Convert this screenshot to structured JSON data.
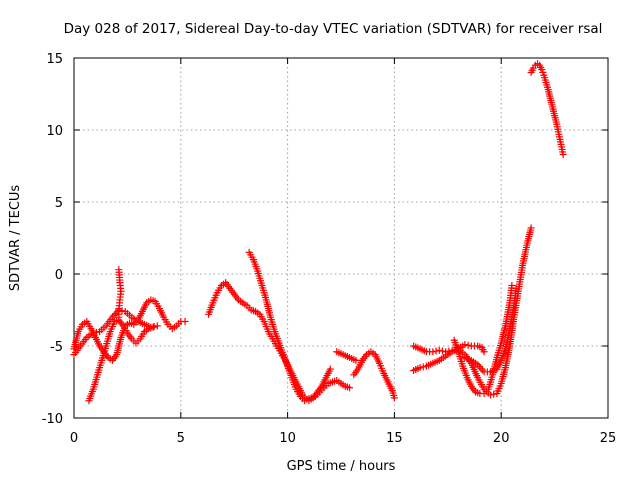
{
  "chart_data": {
    "type": "scatter",
    "title": "Day 028 of 2017, Sidereal Day-to-day VTEC variation (SDTVAR) for receiver rsal",
    "xlabel": "GPS time / hours",
    "ylabel": "SDTVAR / TECUs",
    "xlim": [
      0,
      25
    ],
    "ylim": [
      -10,
      15
    ],
    "xticks": [
      "0",
      "5",
      "10",
      "15",
      "20",
      "25"
    ],
    "yticks": [
      "-10",
      "-5",
      "0",
      "5",
      "10",
      "15"
    ],
    "grid": true,
    "marker": "+",
    "color": "#ff0000",
    "series": [
      {
        "points": [
          [
            0.0,
            -5.6
          ],
          [
            0.3,
            -5.0
          ],
          [
            0.6,
            -4.4
          ],
          [
            0.9,
            -4.1
          ],
          [
            1.2,
            -4.0
          ],
          [
            1.5,
            -3.6
          ],
          [
            1.8,
            -3.0
          ],
          [
            2.1,
            -2.5
          ],
          [
            2.4,
            -2.6
          ],
          [
            2.7,
            -3.0
          ],
          [
            3.0,
            -3.3
          ],
          [
            3.3,
            -3.5
          ],
          [
            3.6,
            -3.7
          ],
          [
            3.9,
            -3.6
          ]
        ]
      },
      {
        "points": [
          [
            0.0,
            -5.2
          ],
          [
            0.2,
            -4.0
          ],
          [
            0.4,
            -3.5
          ],
          [
            0.6,
            -3.3
          ],
          [
            0.8,
            -3.8
          ],
          [
            1.0,
            -4.4
          ],
          [
            1.2,
            -5.0
          ],
          [
            1.4,
            -5.4
          ],
          [
            1.6,
            -5.8
          ],
          [
            1.8,
            -6.0
          ],
          [
            2.0,
            -5.6
          ],
          [
            2.2,
            -4.4
          ],
          [
            2.4,
            -3.6
          ],
          [
            2.6,
            -3.4
          ],
          [
            2.8,
            -3.5
          ],
          [
            3.0,
            -3.2
          ],
          [
            3.2,
            -2.6
          ],
          [
            3.4,
            -2.0
          ],
          [
            3.6,
            -1.8
          ],
          [
            3.8,
            -1.9
          ],
          [
            4.0,
            -2.4
          ],
          [
            4.2,
            -3.0
          ],
          [
            4.4,
            -3.5
          ],
          [
            4.6,
            -3.8
          ],
          [
            4.8,
            -3.6
          ],
          [
            5.0,
            -3.3
          ],
          [
            5.2,
            -3.3
          ]
        ]
      },
      {
        "points": [
          [
            0.7,
            -8.8
          ],
          [
            0.9,
            -8.0
          ],
          [
            1.1,
            -7.0
          ],
          [
            1.3,
            -6.0
          ],
          [
            1.5,
            -5.0
          ],
          [
            1.7,
            -4.0
          ],
          [
            1.9,
            -3.3
          ],
          [
            2.1,
            -3.2
          ],
          [
            2.3,
            -3.6
          ],
          [
            2.5,
            -4.1
          ],
          [
            2.7,
            -4.5
          ],
          [
            2.9,
            -4.8
          ],
          [
            3.1,
            -4.5
          ],
          [
            3.3,
            -4.0
          ],
          [
            3.5,
            -3.8
          ],
          [
            3.7,
            -3.7
          ]
        ]
      },
      {
        "points": [
          [
            2.1,
            0.3
          ],
          [
            2.15,
            -0.6
          ],
          [
            2.2,
            -1.2
          ],
          [
            2.15,
            -1.8
          ],
          [
            2.1,
            -2.4
          ],
          [
            2.1,
            -3.0
          ]
        ]
      },
      {
        "points": [
          [
            6.3,
            -2.8
          ],
          [
            6.5,
            -2.0
          ],
          [
            6.7,
            -1.3
          ],
          [
            6.9,
            -0.8
          ],
          [
            7.1,
            -0.6
          ],
          [
            7.3,
            -1.0
          ],
          [
            7.5,
            -1.4
          ],
          [
            7.7,
            -1.8
          ],
          [
            7.9,
            -2.0
          ],
          [
            8.1,
            -2.2
          ],
          [
            8.3,
            -2.5
          ],
          [
            8.5,
            -2.6
          ],
          [
            8.7,
            -2.8
          ],
          [
            8.9,
            -3.3
          ],
          [
            9.1,
            -4.0
          ],
          [
            9.3,
            -4.5
          ],
          [
            9.5,
            -5.0
          ],
          [
            9.7,
            -5.5
          ],
          [
            9.9,
            -6.0
          ],
          [
            10.1,
            -6.6
          ],
          [
            10.3,
            -7.2
          ],
          [
            10.5,
            -7.8
          ],
          [
            10.7,
            -8.4
          ],
          [
            10.9,
            -8.7
          ],
          [
            11.1,
            -8.6
          ],
          [
            11.3,
            -8.5
          ],
          [
            11.5,
            -8.2
          ],
          [
            11.7,
            -7.9
          ],
          [
            11.9,
            -7.6
          ],
          [
            12.1,
            -7.5
          ],
          [
            12.3,
            -7.4
          ],
          [
            12.5,
            -7.6
          ],
          [
            12.7,
            -7.8
          ],
          [
            12.9,
            -7.9
          ]
        ]
      },
      {
        "points": [
          [
            8.2,
            1.5
          ],
          [
            8.4,
            1.0
          ],
          [
            8.6,
            0.2
          ],
          [
            8.8,
            -0.8
          ],
          [
            9.0,
            -1.8
          ],
          [
            9.2,
            -3.0
          ],
          [
            9.4,
            -4.0
          ],
          [
            9.6,
            -4.8
          ],
          [
            9.8,
            -5.6
          ],
          [
            10.0,
            -6.4
          ],
          [
            10.2,
            -7.2
          ],
          [
            10.4,
            -8.0
          ],
          [
            10.6,
            -8.5
          ],
          [
            10.8,
            -8.8
          ],
          [
            11.0,
            -8.8
          ],
          [
            11.2,
            -8.6
          ],
          [
            11.4,
            -8.2
          ],
          [
            11.6,
            -7.8
          ],
          [
            11.8,
            -7.2
          ],
          [
            12.0,
            -6.6
          ]
        ]
      },
      {
        "points": [
          [
            12.3,
            -5.4
          ],
          [
            12.6,
            -5.6
          ],
          [
            12.9,
            -5.8
          ],
          [
            13.2,
            -6.0
          ]
        ]
      },
      {
        "points": [
          [
            13.1,
            -7.0
          ],
          [
            13.3,
            -6.6
          ],
          [
            13.5,
            -6.0
          ],
          [
            13.7,
            -5.6
          ],
          [
            13.9,
            -5.4
          ],
          [
            14.1,
            -5.6
          ],
          [
            14.3,
            -6.2
          ],
          [
            14.5,
            -6.9
          ],
          [
            14.7,
            -7.5
          ],
          [
            14.9,
            -8.1
          ],
          [
            15.0,
            -8.6
          ]
        ]
      },
      {
        "points": [
          [
            15.9,
            -5.0
          ],
          [
            16.2,
            -5.2
          ],
          [
            16.5,
            -5.4
          ],
          [
            16.8,
            -5.4
          ],
          [
            17.1,
            -5.3
          ],
          [
            17.4,
            -5.4
          ],
          [
            17.7,
            -5.3
          ],
          [
            18.0,
            -5.2
          ],
          [
            18.3,
            -4.9
          ],
          [
            18.6,
            -5.0
          ],
          [
            18.9,
            -5.0
          ],
          [
            19.1,
            -5.1
          ],
          [
            19.2,
            -5.4
          ]
        ]
      },
      {
        "points": [
          [
            15.9,
            -6.7
          ],
          [
            16.2,
            -6.5
          ],
          [
            16.5,
            -6.4
          ],
          [
            16.8,
            -6.2
          ],
          [
            17.1,
            -6.0
          ],
          [
            17.4,
            -5.7
          ],
          [
            17.7,
            -5.4
          ],
          [
            18.0,
            -5.2
          ],
          [
            18.3,
            -5.6
          ],
          [
            18.6,
            -6.2
          ],
          [
            18.9,
            -7.2
          ],
          [
            19.2,
            -8.0
          ],
          [
            19.5,
            -8.4
          ],
          [
            19.8,
            -8.3
          ],
          [
            20.0,
            -7.6
          ],
          [
            20.2,
            -6.5
          ],
          [
            20.4,
            -5.0
          ],
          [
            20.6,
            -3.0
          ],
          [
            20.8,
            -1.2
          ],
          [
            21.0,
            0.6
          ],
          [
            21.2,
            2.0
          ],
          [
            21.4,
            3.2
          ]
        ]
      },
      {
        "points": [
          [
            17.8,
            -4.6
          ],
          [
            18.0,
            -5.4
          ],
          [
            18.2,
            -6.4
          ],
          [
            18.4,
            -7.2
          ],
          [
            18.6,
            -7.8
          ],
          [
            18.8,
            -8.2
          ],
          [
            19.0,
            -8.3
          ],
          [
            19.2,
            -8.3
          ],
          [
            19.4,
            -8.0
          ],
          [
            19.6,
            -7.0
          ],
          [
            19.8,
            -5.8
          ],
          [
            20.0,
            -4.8
          ],
          [
            20.2,
            -3.6
          ],
          [
            20.4,
            -2.0
          ],
          [
            20.5,
            -0.8
          ]
        ]
      },
      {
        "points": [
          [
            18.3,
            -5.8
          ],
          [
            18.6,
            -6.0
          ],
          [
            18.9,
            -6.3
          ],
          [
            19.2,
            -6.8
          ],
          [
            19.5,
            -6.8
          ],
          [
            19.8,
            -6.6
          ],
          [
            20.0,
            -6.0
          ],
          [
            20.2,
            -5.2
          ],
          [
            20.4,
            -3.8
          ],
          [
            20.6,
            -2.2
          ],
          [
            20.7,
            -1.0
          ]
        ]
      },
      {
        "points": [
          [
            21.4,
            14.0
          ],
          [
            21.5,
            14.3
          ],
          [
            21.6,
            14.5
          ],
          [
            21.7,
            14.6
          ],
          [
            21.8,
            14.5
          ],
          [
            21.9,
            14.2
          ],
          [
            22.0,
            13.8
          ],
          [
            22.1,
            13.3
          ],
          [
            22.2,
            12.8
          ],
          [
            22.3,
            12.2
          ],
          [
            22.4,
            11.6
          ],
          [
            22.5,
            11.0
          ],
          [
            22.6,
            10.4
          ],
          [
            22.7,
            9.7
          ],
          [
            22.8,
            9.0
          ],
          [
            22.9,
            8.3
          ]
        ]
      }
    ]
  }
}
